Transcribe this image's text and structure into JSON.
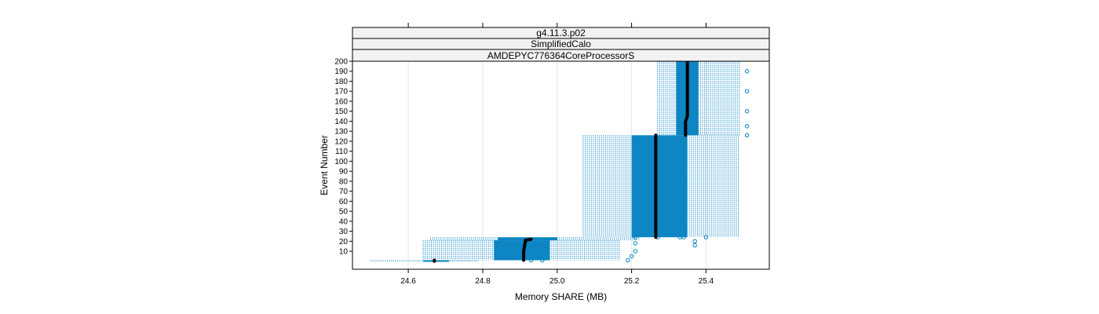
{
  "chart_data": {
    "type": "scatter",
    "title": "",
    "strips": [
      "g4.11.3.p02",
      "SimplifiedCalo",
      "AMDEPYC776364CoreProcessorS"
    ],
    "xlabel": "Memory SHARE (MB)",
    "ylabel": "Event Number",
    "xlim": [
      24.45,
      25.57
    ],
    "ylim": [
      -8,
      200
    ],
    "x_ticks": [
      24.6,
      24.8,
      25.0,
      25.2,
      25.4
    ],
    "x_tick_labels": [
      "24.6",
      "24.8",
      "25.0",
      "25.2",
      "25.4"
    ],
    "y_ticks": [
      10,
      20,
      30,
      40,
      50,
      60,
      70,
      80,
      90,
      100,
      110,
      120,
      130,
      140,
      150,
      160,
      170,
      180,
      190,
      200
    ],
    "y_tick_labels": [
      "10",
      "20",
      "30",
      "40",
      "50",
      "60",
      "70",
      "80",
      "90",
      "100",
      "110",
      "120",
      "130",
      "140",
      "150",
      "160",
      "170",
      "180",
      "190",
      "200"
    ],
    "grid": true,
    "colors": {
      "points": "#0080c0",
      "median": "#000000",
      "strip_bg": "#f2f2f2",
      "grid": "#e6e6e6"
    },
    "series": [
      {
        "kind": "runs",
        "event_range": [
          0,
          1
        ],
        "x_range": [
          24.5,
          24.79
        ],
        "dense_range": [
          24.64,
          24.71
        ],
        "median": [
          [
            0,
            24.67
          ],
          [
            1,
            24.67
          ]
        ]
      },
      {
        "kind": "runs",
        "event_range": [
          1,
          21
        ],
        "x_range": [
          24.64,
          25.17
        ],
        "dense_range": [
          24.83,
          24.98
        ],
        "median": [
          [
            1,
            24.91
          ],
          [
            10,
            24.91
          ],
          [
            21,
            24.915
          ],
          [
            22,
            24.93
          ]
        ]
      },
      {
        "kind": "runs",
        "event_range": [
          21,
          24
        ],
        "x_range": [
          24.66,
          25.22
        ],
        "dense_range": [
          24.84,
          25.0
        ],
        "median": []
      },
      {
        "kind": "runs",
        "event_range": [
          24,
          126
        ],
        "x_range": [
          25.07,
          25.49
        ],
        "dense_range": [
          25.2,
          25.35
        ],
        "median": [
          [
            24,
            25.265
          ],
          [
            126,
            25.265
          ]
        ]
      },
      {
        "kind": "runs",
        "event_range": [
          126,
          200
        ],
        "x_range": [
          25.27,
          25.49
        ],
        "dense_range": [
          25.32,
          25.38
        ],
        "median": [
          [
            126,
            25.345
          ],
          [
            140,
            25.345
          ],
          [
            145,
            25.35
          ],
          [
            200,
            25.35
          ]
        ]
      },
      {
        "kind": "points",
        "label": "outliers",
        "points": [
          [
            25.51,
            126
          ],
          [
            25.51,
            135
          ],
          [
            25.51,
            150
          ],
          [
            25.51,
            170
          ],
          [
            25.51,
            190
          ],
          [
            25.21,
            24
          ],
          [
            25.21,
            18
          ],
          [
            25.21,
            10
          ],
          [
            25.2,
            5
          ],
          [
            25.33,
            24
          ],
          [
            25.34,
            24
          ],
          [
            25.37,
            20
          ],
          [
            25.37,
            16
          ],
          [
            25.4,
            24
          ],
          [
            25.27,
            24
          ],
          [
            24.96,
            1
          ],
          [
            24.93,
            1
          ],
          [
            25.19,
            1
          ]
        ]
      }
    ]
  }
}
